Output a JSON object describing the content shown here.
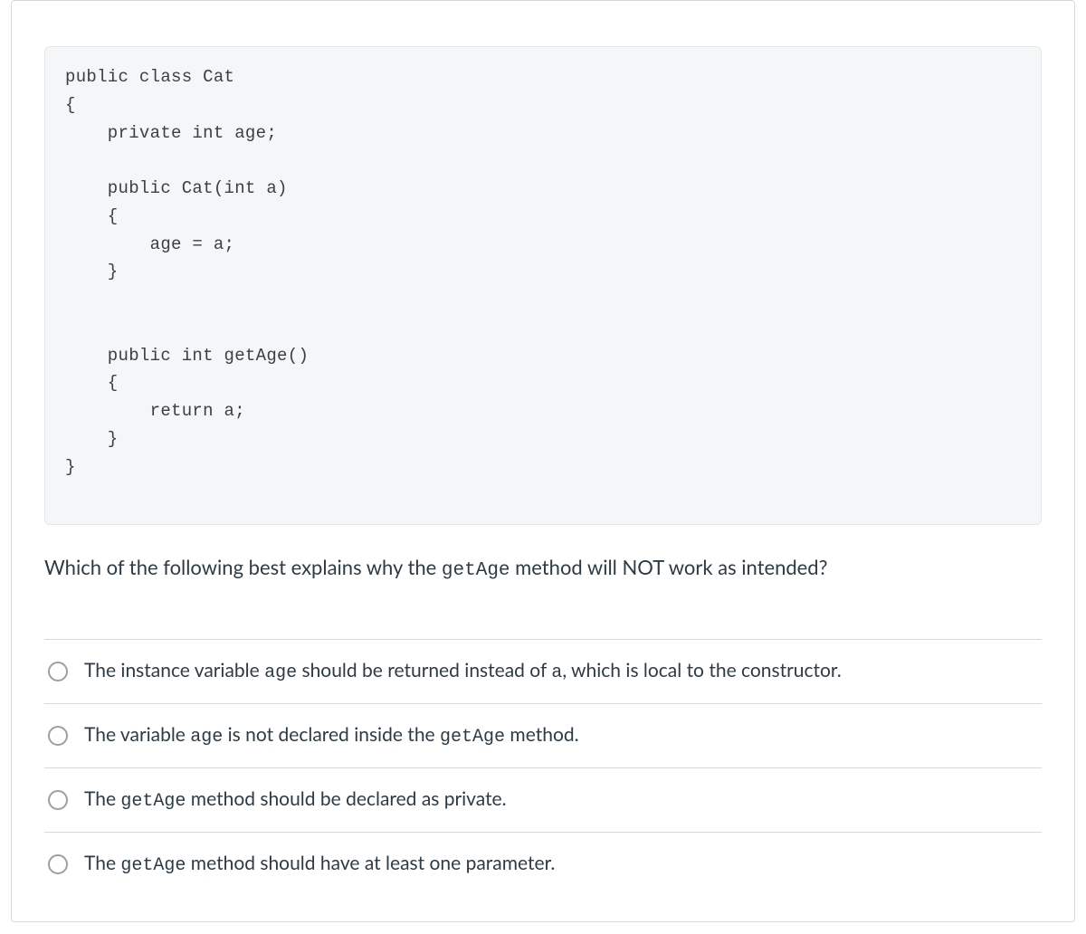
{
  "code": {
    "line1": "public class Cat",
    "line2": "{",
    "line3": "    private int age;",
    "line4": "",
    "line5": "    public Cat(int a)",
    "line6": "    {",
    "line7": "        age = a;",
    "line8": "    }",
    "line9": "",
    "line10": "",
    "line11": "    public int getAge()",
    "line12": "    {",
    "line13": "        return a;",
    "line14": "    }",
    "line15": "}"
  },
  "question": {
    "pre": "Which of the following best explains why the ",
    "code1": "getAge",
    "post": " method will NOT work as intended?"
  },
  "answers": {
    "a": {
      "p1": "The instance variable ",
      "c1": "age",
      "p2": " should be returned instead of ",
      "c2": "a",
      "p3": ", which is local to the constructor."
    },
    "b": {
      "p1": "The variable ",
      "c1": "age",
      "p2": " is not declared inside the ",
      "c2": "getAge",
      "p3": " method."
    },
    "c": {
      "p1": "The ",
      "c1": "getAge",
      "p2": "  method should be declared as private."
    },
    "d": {
      "p1": "The ",
      "c1": "getAge",
      "p2": " method should have at least one parameter."
    }
  }
}
